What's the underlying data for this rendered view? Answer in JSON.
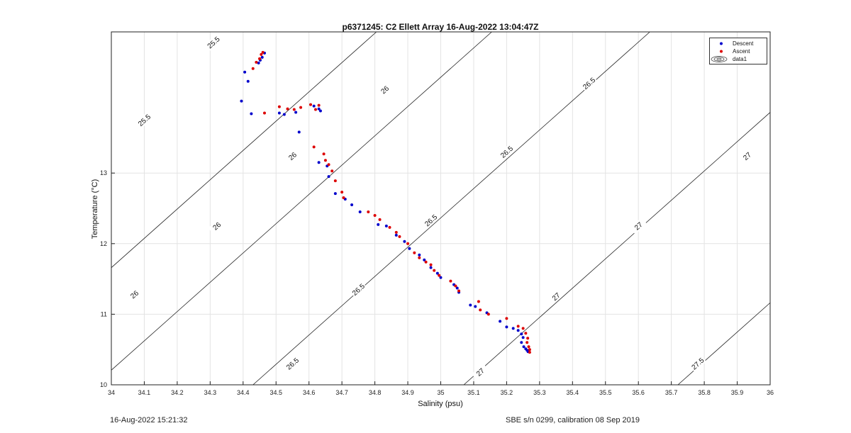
{
  "footer": {
    "left": "16-Aug-2022 15:21:32",
    "right": "SBE s/n 0299, calibration 08 Sep 2019"
  },
  "chart_data": {
    "type": "scatter",
    "title": "p6371245: C2 Ellett Array 16-Aug-2022 13:04:47Z",
    "xlabel": "Salinity (psu)",
    "ylabel": "Temperature (°C)",
    "xlim": [
      34,
      36
    ],
    "ylim": [
      10,
      15
    ],
    "xticks": [
      "34",
      "34.1",
      "34.2",
      "34.3",
      "34.4",
      "34.5",
      "34.6",
      "34.7",
      "34.8",
      "34.9",
      "35",
      "35.1",
      "35.2",
      "35.3",
      "35.4",
      "35.5",
      "35.6",
      "35.7",
      "35.8",
      "35.9",
      "36"
    ],
    "xtick_values": [
      34,
      34.1,
      34.2,
      34.3,
      34.4,
      34.5,
      34.6,
      34.7,
      34.8,
      34.9,
      35,
      35.1,
      35.2,
      35.3,
      35.4,
      35.5,
      35.6,
      35.7,
      35.8,
      35.9,
      36
    ],
    "yticks": [
      "10",
      "11",
      "12",
      "13"
    ],
    "ytick_values": [
      10,
      11,
      12,
      13
    ],
    "grid": true,
    "legend_position": "top-right",
    "legend": [
      {
        "name": "Descent",
        "color": "#0000cc",
        "marker": "dot"
      },
      {
        "name": "Ascent",
        "color": "#dd0000",
        "marker": "dot"
      },
      {
        "name": "data1",
        "color": "#333333",
        "marker": "contour"
      }
    ],
    "series": [
      {
        "name": "Descent",
        "color": "#0000cc",
        "points": [
          [
            34.465,
            14.7
          ],
          [
            34.458,
            14.64
          ],
          [
            34.452,
            14.6
          ],
          [
            34.447,
            14.56
          ],
          [
            34.405,
            14.43
          ],
          [
            34.415,
            14.3
          ],
          [
            34.395,
            14.02
          ],
          [
            34.425,
            13.84
          ],
          [
            34.51,
            13.85
          ],
          [
            34.525,
            13.83
          ],
          [
            34.56,
            13.86
          ],
          [
            34.635,
            13.88
          ],
          [
            34.63,
            13.91
          ],
          [
            34.615,
            13.95
          ],
          [
            34.57,
            13.58
          ],
          [
            34.63,
            13.15
          ],
          [
            34.655,
            13.1
          ],
          [
            34.66,
            12.95
          ],
          [
            34.68,
            12.71
          ],
          [
            34.71,
            12.63
          ],
          [
            34.73,
            12.55
          ],
          [
            34.755,
            12.45
          ],
          [
            34.81,
            12.27
          ],
          [
            34.835,
            12.25
          ],
          [
            34.865,
            12.12
          ],
          [
            34.89,
            12.03
          ],
          [
            34.905,
            11.93
          ],
          [
            34.935,
            11.84
          ],
          [
            34.95,
            11.77
          ],
          [
            34.97,
            11.66
          ],
          [
            34.99,
            11.58
          ],
          [
            35.0,
            11.52
          ],
          [
            35.04,
            11.42
          ],
          [
            35.05,
            11.37
          ],
          [
            35.055,
            11.31
          ],
          [
            35.09,
            11.13
          ],
          [
            35.105,
            11.11
          ],
          [
            35.14,
            11.02
          ],
          [
            35.18,
            10.9
          ],
          [
            35.2,
            10.82
          ],
          [
            35.22,
            10.8
          ],
          [
            35.235,
            10.77
          ],
          [
            35.245,
            10.72
          ],
          [
            35.25,
            10.67
          ],
          [
            35.245,
            10.6
          ],
          [
            35.252,
            10.54
          ],
          [
            35.258,
            10.51
          ],
          [
            35.262,
            10.49
          ],
          [
            35.265,
            10.47
          ]
        ]
      },
      {
        "name": "Ascent",
        "color": "#dd0000",
        "points": [
          [
            34.46,
            14.71
          ],
          [
            34.455,
            14.68
          ],
          [
            34.45,
            14.62
          ],
          [
            34.44,
            14.57
          ],
          [
            34.43,
            14.48
          ],
          [
            34.51,
            13.94
          ],
          [
            34.535,
            13.91
          ],
          [
            34.555,
            13.9
          ],
          [
            34.575,
            13.93
          ],
          [
            34.605,
            13.97
          ],
          [
            34.63,
            13.96
          ],
          [
            34.62,
            13.9
          ],
          [
            34.465,
            13.85
          ],
          [
            34.615,
            13.37
          ],
          [
            34.645,
            13.27
          ],
          [
            34.65,
            13.18
          ],
          [
            34.66,
            13.12
          ],
          [
            34.67,
            13.03
          ],
          [
            34.68,
            12.89
          ],
          [
            34.7,
            12.73
          ],
          [
            34.705,
            12.65
          ],
          [
            34.78,
            12.45
          ],
          [
            34.8,
            12.4
          ],
          [
            34.815,
            12.34
          ],
          [
            34.845,
            12.23
          ],
          [
            34.865,
            12.16
          ],
          [
            34.875,
            12.1
          ],
          [
            34.9,
            12.0
          ],
          [
            34.92,
            11.87
          ],
          [
            34.935,
            11.8
          ],
          [
            34.955,
            11.74
          ],
          [
            34.97,
            11.7
          ],
          [
            34.98,
            11.62
          ],
          [
            34.995,
            11.55
          ],
          [
            35.03,
            11.47
          ],
          [
            35.045,
            11.4
          ],
          [
            35.055,
            11.33
          ],
          [
            35.115,
            11.18
          ],
          [
            35.12,
            11.06
          ],
          [
            35.145,
            11.0
          ],
          [
            35.2,
            10.94
          ],
          [
            35.235,
            10.83
          ],
          [
            35.25,
            10.8
          ],
          [
            35.258,
            10.73
          ],
          [
            35.264,
            10.66
          ],
          [
            35.262,
            10.6
          ],
          [
            35.267,
            10.54
          ],
          [
            35.27,
            10.5
          ],
          [
            35.27,
            10.46
          ]
        ]
      }
    ],
    "density_contours": [
      {
        "label": "25.5",
        "sigma": 25.5,
        "label_positions": [
          [
            34.31,
            14.85
          ],
          [
            34.1,
            13.75
          ]
        ]
      },
      {
        "label": "26",
        "sigma": 26.0,
        "label_positions": [
          [
            34.83,
            14.18
          ],
          [
            34.55,
            13.24
          ],
          [
            34.32,
            12.25
          ],
          [
            34.07,
            11.28
          ]
        ]
      },
      {
        "label": "26.5",
        "sigma": 26.5,
        "label_positions": [
          [
            35.45,
            14.27
          ],
          [
            35.2,
            13.3
          ],
          [
            34.97,
            12.33
          ],
          [
            34.75,
            11.35
          ],
          [
            34.55,
            10.3
          ]
        ]
      },
      {
        "label": "27",
        "sigma": 27.0,
        "label_positions": [
          [
            35.93,
            13.24
          ],
          [
            35.6,
            12.25
          ],
          [
            35.35,
            11.25
          ],
          [
            35.12,
            10.18
          ]
        ]
      },
      {
        "label": "27.5",
        "sigma": 27.5,
        "label_positions": [
          [
            35.78,
            10.3
          ]
        ]
      }
    ]
  }
}
